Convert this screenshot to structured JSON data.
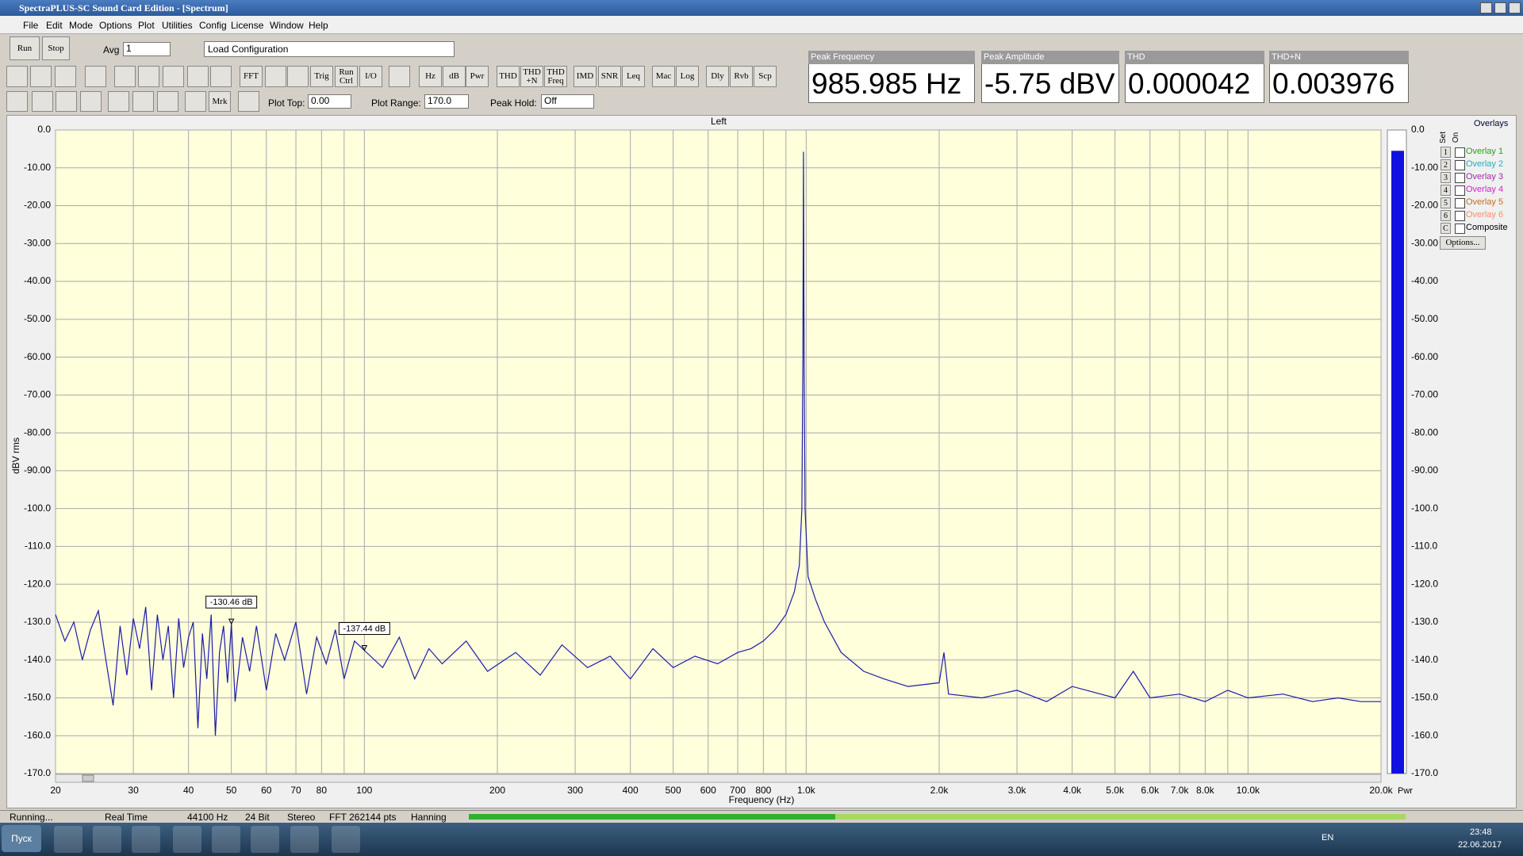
{
  "window": {
    "title": "SpectraPLUS-SC Sound Card Edition - [Spectrum]"
  },
  "menu": [
    "File",
    "Edit",
    "Mode",
    "Options",
    "Plot",
    "Utilities",
    "Config",
    "License",
    "Window",
    "Help"
  ],
  "toolbar": {
    "run": "Run",
    "stop": "Stop",
    "avg_label": "Avg",
    "avg_value": "1",
    "config": "Load Configuration",
    "buttons": [
      "FFT",
      "Trig",
      "Run Ctrl",
      "I/O",
      "Hz",
      "dB",
      "Pwr",
      "THD",
      "THD +N",
      "THD Freq",
      "IMD",
      "SNR",
      "Leq",
      "Mac",
      "Log",
      "Dly",
      "Rvb",
      "Scp"
    ],
    "mrk": "Mrk",
    "plot_top_label": "Plot Top:",
    "plot_top": "0.00",
    "plot_range_label": "Plot Range:",
    "plot_range": "170.0",
    "peak_hold_label": "Peak Hold:",
    "peak_hold": "Off"
  },
  "meters": [
    {
      "label": "Peak Frequency",
      "value": "985.985 Hz"
    },
    {
      "label": "Peak Amplitude",
      "value": "-5.75 dBV"
    },
    {
      "label": "THD",
      "value": "0.000042"
    },
    {
      "label": "THD+N",
      "value": "0.003976"
    }
  ],
  "plot": {
    "title": "Left",
    "x_label": "Frequency (Hz)",
    "y_label": "dBV rms",
    "xlim": [
      20,
      20000
    ],
    "ylim": [
      -170,
      0
    ],
    "log_x": true,
    "color": "#1c1ca8",
    "yticks": [
      {
        "value": 0,
        "label": "0.0"
      },
      {
        "value": -10,
        "label": "-10.00"
      },
      {
        "value": -20,
        "label": "-20.00"
      },
      {
        "value": -30,
        "label": "-30.00"
      },
      {
        "value": -40,
        "label": "-40.00"
      },
      {
        "value": -50,
        "label": "-50.00"
      },
      {
        "value": -60,
        "label": "-60.00"
      },
      {
        "value": -70,
        "label": "-70.00"
      },
      {
        "value": -80,
        "label": "-80.00"
      },
      {
        "value": -90,
        "label": "-90.00"
      },
      {
        "value": -100,
        "label": "-100.0"
      },
      {
        "value": -110,
        "label": "-110.0"
      },
      {
        "value": -120,
        "label": "-120.0"
      },
      {
        "value": -130,
        "label": "-130.0"
      },
      {
        "value": -140,
        "label": "-140.0"
      },
      {
        "value": -150,
        "label": "-150.0"
      },
      {
        "value": -160,
        "label": "-160.0"
      },
      {
        "value": -170,
        "label": "-170.0"
      }
    ],
    "xticks": [
      20,
      30,
      40,
      50,
      60,
      70,
      80,
      100,
      200,
      300,
      400,
      500,
      600,
      700,
      800,
      {
        "value": 1000,
        "label": "1.0k"
      },
      {
        "value": 2000,
        "label": "2.0k"
      },
      {
        "value": 3000,
        "label": "3.0k"
      },
      {
        "value": 4000,
        "label": "4.0k"
      },
      {
        "value": 5000,
        "label": "5.0k"
      },
      {
        "value": 6000,
        "label": "6.0k"
      },
      {
        "value": 7000,
        "label": "7.0k"
      },
      {
        "value": 8000,
        "label": "8.0k"
      },
      {
        "value": 10000,
        "label": "10.0k"
      },
      {
        "value": 20000,
        "label": "20.0k"
      }
    ],
    "minor_gridlines": [
      90,
      900,
      9000
    ],
    "trace": {
      "x": [
        20,
        21,
        22,
        23,
        24,
        25,
        26,
        27,
        28,
        29,
        30,
        31,
        32,
        33,
        34,
        35,
        36,
        37,
        38,
        39,
        40,
        41,
        42,
        43,
        44,
        45,
        46,
        47,
        48,
        49,
        50,
        51,
        53,
        55,
        57,
        60,
        63,
        66,
        70,
        74,
        78,
        82,
        86,
        90,
        95,
        100,
        110,
        120,
        130,
        140,
        150,
        170,
        190,
        220,
        250,
        280,
        320,
        360,
        400,
        450,
        500,
        560,
        630,
        700,
        750,
        800,
        850,
        900,
        940,
        965,
        978,
        983,
        985.985,
        989,
        994,
        1010,
        1050,
        1100,
        1200,
        1350,
        1500,
        1700,
        2000,
        2050,
        2100,
        2500,
        3000,
        3500,
        4000,
        5000,
        5500,
        6000,
        7000,
        8000,
        9000,
        10000,
        12000,
        14000,
        16000,
        18000,
        20000
      ],
      "y": [
        -128,
        -135,
        -130,
        -140,
        -132,
        -127,
        -140,
        -152,
        -131,
        -144,
        -129,
        -137,
        -126,
        -148,
        -128,
        -140,
        -131,
        -150,
        -129,
        -142,
        -134,
        -130,
        -158,
        -133,
        -145,
        -128,
        -160,
        -138,
        -131,
        -146,
        -130.46,
        -151,
        -134,
        -143,
        -131,
        -148,
        -133,
        -140,
        -130,
        -149,
        -134,
        -141,
        -132,
        -145,
        -135,
        -137.44,
        -142,
        -134,
        -145,
        -137,
        -141,
        -135,
        -143,
        -138,
        -144,
        -136,
        -142,
        -139,
        -145,
        -137,
        -142,
        -139,
        -141,
        -138,
        -137,
        -135,
        -132,
        -128,
        -122,
        -115,
        -100,
        -60,
        -5.75,
        -60,
        -100,
        -118,
        -124,
        -130,
        -138,
        -143,
        -145,
        -147,
        -146,
        -138,
        -149,
        -150,
        -148,
        -151,
        -147,
        -150,
        -143,
        -150,
        -149,
        -151,
        -148,
        -150,
        -149,
        -151,
        -150,
        -151,
        -151
      ]
    },
    "markers": {
      "x": [
        50,
        100
      ],
      "values": [
        -130.46,
        -137.44
      ],
      "value_labels": [
        "-130.46 dB",
        "-137.44 dB"
      ]
    },
    "pwr_meter": {
      "label": "Pwr",
      "value": -5.5,
      "color": "#1010e0"
    }
  },
  "overlays": {
    "title": "Overlays",
    "set": "Set",
    "on": "On",
    "options": "Options...",
    "items": [
      {
        "key": "1",
        "name": "Overlay 1",
        "color": "#22a022"
      },
      {
        "key": "2",
        "name": "Overlay 2",
        "color": "#20b0c0"
      },
      {
        "key": "3",
        "name": "Overlay 3",
        "color": "#9a30a0"
      },
      {
        "key": "4",
        "name": "Overlay 4",
        "color": "#d020d0"
      },
      {
        "key": "5",
        "name": "Overlay 5",
        "color": "#c07020"
      },
      {
        "key": "6",
        "name": "Overlay 6",
        "color": "#f09070"
      },
      {
        "key": "C",
        "name": "Composite",
        "color": "#000000"
      }
    ]
  },
  "status": [
    "Running...",
    "Real Time",
    "44100 Hz",
    "24 Bit",
    "Stereo",
    "FFT 262144 pts",
    "Hanning"
  ],
  "taskbar": {
    "start": "Пуск",
    "lang": "EN",
    "time": "23:48",
    "date": "22.06.2017"
  }
}
